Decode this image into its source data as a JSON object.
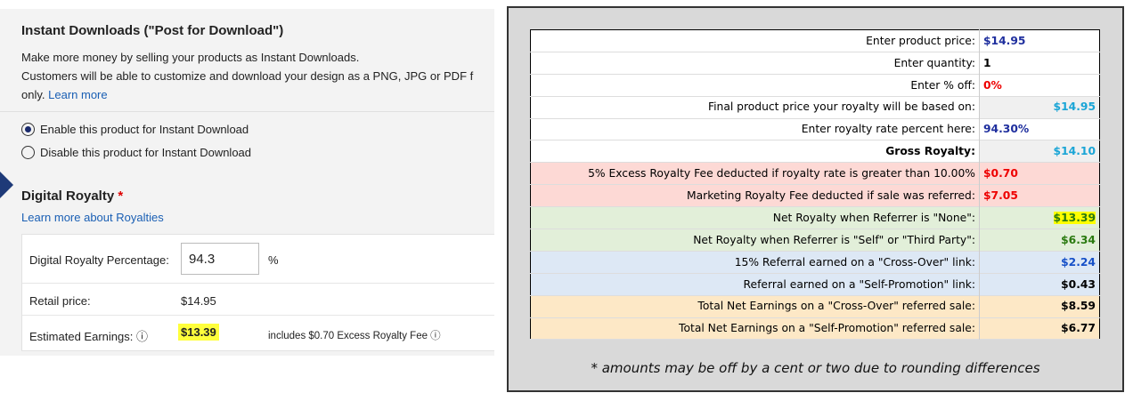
{
  "left": {
    "title": "Instant Downloads (\"Post for Download\")",
    "description": [
      "Make more money by selling your products as Instant Downloads.",
      "Customers will be able to customize and download your design as a PNG, JPG or PDF f",
      "only."
    ],
    "learn_more": "Learn more",
    "options": [
      "Enable this product for Instant Download",
      "Disable this product for Instant Download"
    ],
    "royalty_title": "Digital Royalty",
    "required_mark": "*",
    "royalty_link": "Learn more about Royalties",
    "percentage": {
      "label": "Digital Royalty Percentage:",
      "value": "94.3",
      "unit": "%"
    },
    "retail": {
      "label": "Retail price:",
      "value": "$14.95"
    },
    "earnings": {
      "label": "Estimated Earnings:",
      "value": "$13.39",
      "note": "includes $0.70 Excess Royalty Fee"
    }
  },
  "calculator": {
    "rows": [
      {
        "label": "Enter product price:",
        "value": "$14.95"
      },
      {
        "label": "Enter quantity:",
        "value": "1"
      },
      {
        "label": "Enter % off:",
        "value": "0%"
      },
      {
        "label": "Final product price your royalty will be based on:",
        "value": "$14.95"
      },
      {
        "label": "Enter royalty rate percent here:",
        "value": "94.30%"
      },
      {
        "label": "Gross Royalty:",
        "value": "$14.10"
      },
      {
        "label": "5% Excess Royalty Fee deducted if royalty rate is greater than 10.00%",
        "value": "$0.70"
      },
      {
        "label": "Marketing Royalty Fee deducted if sale was referred:",
        "value": "$7.05"
      },
      {
        "label": "Net Royalty when Referrer is \"None\":",
        "value": "$13.39"
      },
      {
        "label": "Net Royalty when Referrer is \"Self\" or \"Third Party\":",
        "value": "$6.34"
      },
      {
        "label": "15% Referral earned on a \"Cross-Over\" link:",
        "value": "$2.24"
      },
      {
        "label": "Referral earned on a \"Self-Promotion\" link:",
        "value": "$0.43"
      },
      {
        "label": "Total Net Earnings on a \"Cross-Over\" referred sale:",
        "value": "$8.59"
      },
      {
        "label": "Total Net Earnings on a \"Self-Promotion\" referred sale:",
        "value": "$6.77"
      }
    ],
    "footnote": "* amounts may be off by a cent or two due to rounding differences"
  }
}
